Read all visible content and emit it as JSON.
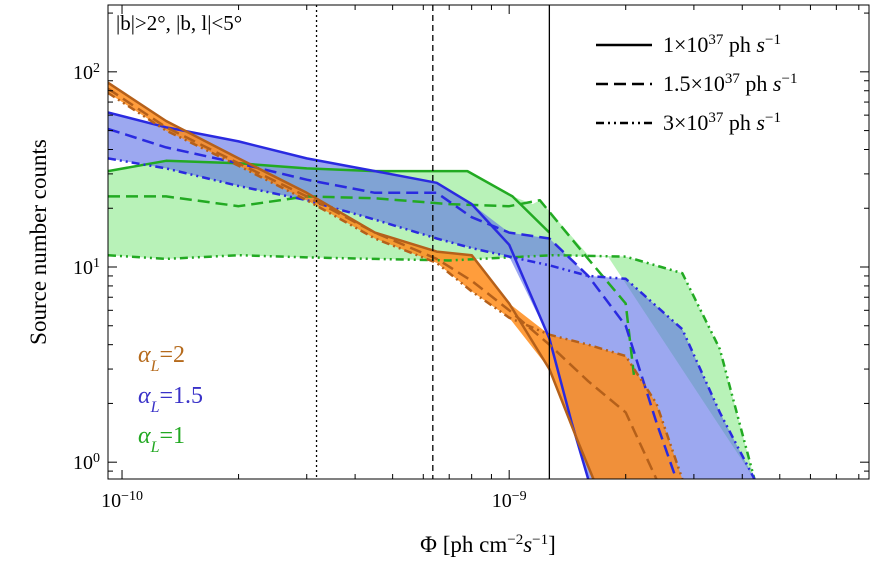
{
  "chart_data": {
    "type": "area",
    "xscale": "log",
    "yscale": "log",
    "xlim": [
      9.2e-11,
      8.5e-09
    ],
    "ylim": [
      0.82,
      220
    ],
    "xlabel_main": "Φ [ph cm",
    "xlabel_sup1": "−2",
    "xlabel_mid": "s",
    "xlabel_sup2": "−1",
    "xlabel_end": "]",
    "ylabel": "Source number counts",
    "annotation": "|b|>2°, |b, l|<5°",
    "x_ticks": [
      {
        "base": "10",
        "exp": "−10",
        "value": 1e-10
      },
      {
        "base": "10",
        "exp": "−9",
        "value": 1e-09
      }
    ],
    "y_ticks": [
      {
        "base": "10",
        "exp": "0",
        "value": 1
      },
      {
        "base": "10",
        "exp": "1",
        "value": 10
      },
      {
        "base": "10",
        "exp": "2",
        "value": 100
      }
    ],
    "vertical_lines": [
      {
        "x": 1.27e-09,
        "style": "solid"
      },
      {
        "x": 6.35e-10,
        "style": "dashed"
      },
      {
        "x": 3.18e-10,
        "style": "dotted"
      }
    ],
    "legend": [
      {
        "style": "solid",
        "coef": "1×10",
        "exp": "37",
        "unit": " ph ",
        "s": "s",
        "sexp": "−1"
      },
      {
        "style": "dashed",
        "coef": "1.5×10",
        "exp": "37",
        "unit": " ph ",
        "s": "s",
        "sexp": "−1"
      },
      {
        "style": "dashdot",
        "coef": "3×10",
        "exp": "37",
        "unit": " ph ",
        "s": "s",
        "sexp": "−1"
      }
    ],
    "alpha_labels": [
      {
        "symbol": "α",
        "sub": "L",
        "value": "=2",
        "color": "#b56a1c"
      },
      {
        "symbol": "α",
        "sub": "L",
        "value": "=1.5",
        "color": "#3a32c8"
      },
      {
        "symbol": "α",
        "sub": "L",
        "value": "=1",
        "color": "#22a822"
      }
    ],
    "groups": [
      {
        "name": "alpha_L=1",
        "line_color": "#22aa22",
        "fill_color": "#7de87d",
        "fill_opacity": 0.55,
        "series": [
          {
            "style": "solid",
            "x": [
              9.2e-11,
              1.3e-10,
              2e-10,
              3e-10,
              4.5e-10,
              7.8e-10,
              1.02e-09,
              1.27e-09
            ],
            "y": [
              31,
              35,
              34,
              32,
              31,
              31,
              23,
              15
            ]
          },
          {
            "style": "dashed",
            "x": [
              9.2e-11,
              1.3e-10,
              2e-10,
              3e-10,
              4.5e-10,
              7e-10,
              1e-09,
              1.2e-09,
              1.6e-09,
              2e-09,
              2.1e-09
            ],
            "y": [
              23,
              23,
              20.5,
              23,
              22.5,
              21,
              20.5,
              22,
              11,
              6.5,
              2.8
            ]
          },
          {
            "style": "dashdot",
            "x": [
              9.2e-11,
              1.3e-10,
              2e-10,
              3e-10,
              4.5e-10,
              7e-10,
              1e-09,
              1.3e-09,
              2e-09,
              2.8e-09,
              3.5e-09,
              4.3e-09
            ],
            "y": [
              11.5,
              11,
              11.5,
              11.2,
              11,
              10.8,
              11.2,
              11.5,
              11.3,
              9.3,
              3.8,
              0.82
            ]
          }
        ],
        "band": {
          "upper": {
            "x": [
              9.2e-11,
              1.3e-10,
              2e-10,
              3e-10,
              4.5e-10,
              7.8e-10,
              1.02e-09,
              1.15e-09,
              1.2e-09,
              1.6e-09,
              2e-09,
              2.8e-09,
              3.5e-09,
              4.3e-09
            ],
            "y": [
              31,
              35,
              34,
              32,
              31,
              31,
              23,
              21,
              22,
              11.5,
              11.3,
              9.3,
              3.8,
              0.82
            ]
          },
          "lower": {
            "x": [
              9.2e-11,
              1.3e-10,
              2e-10,
              3e-10,
              4.5e-10,
              7e-10,
              1e-09,
              1.27e-09,
              1.6e-09,
              1.8e-09,
              4.3e-09
            ],
            "y": [
              11.5,
              11,
              11.5,
              11.2,
              11,
              10.8,
              11.2,
              11.5,
              11.3,
              11.3,
              0.82
            ]
          }
        }
      },
      {
        "name": "alpha_L=1.5",
        "line_color": "#2a2ae0",
        "fill_color": "#5a6ee6",
        "fill_opacity": 0.6,
        "series": [
          {
            "style": "solid",
            "x": [
              9.2e-11,
              1.3e-10,
              2e-10,
              3e-10,
              4.5e-10,
              6.5e-10,
              8e-10,
              1e-09,
              1.27e-09,
              1.45e-09,
              1.6e-09
            ],
            "y": [
              62,
              52,
              44,
              36,
              31,
              27,
              21,
              13,
              4.3,
              1.6,
              0.82
            ]
          },
          {
            "style": "dashed",
            "x": [
              9.2e-11,
              1.3e-10,
              2e-10,
              3e-10,
              4.5e-10,
              6.5e-10,
              8e-10,
              1e-09,
              1.27e-09,
              1.6e-09,
              2e-09,
              2.4e-09,
              2.7e-09
            ],
            "y": [
              51,
              41,
              34,
              28,
              24,
              24,
              18,
              15,
              14,
              9,
              5,
              1.6,
              0.82
            ]
          },
          {
            "style": "dashdot",
            "x": [
              9.2e-11,
              1.3e-10,
              2e-10,
              3e-10,
              4.5e-10,
              6.5e-10,
              8e-10,
              1e-09,
              1.27e-09,
              1.6e-09,
              2e-09,
              2.8e-09,
              3.5e-09,
              4.3e-09
            ],
            "y": [
              36,
              32,
              26,
              22,
              17.5,
              14,
              12.5,
              11.3,
              10.2,
              9,
              8.7,
              4.8,
              1.8,
              0.82
            ]
          }
        ],
        "band": {
          "upper": {
            "x": [
              9.2e-11,
              1.3e-10,
              2e-10,
              3e-10,
              4.5e-10,
              6.5e-10,
              8e-10,
              1e-09,
              1.27e-09,
              1.6e-09,
              2e-09,
              2.8e-09,
              3.5e-09,
              4.3e-09
            ],
            "y": [
              62,
              52,
              44,
              36,
              31,
              27,
              21,
              15,
              14,
              9,
              8.7,
              4.8,
              1.8,
              0.82
            ]
          },
          "lower": {
            "x": [
              9.2e-11,
              1.3e-10,
              2e-10,
              3e-10,
              4.5e-10,
              6.5e-10,
              8e-10,
              1e-09,
              1.27e-09,
              1.45e-09,
              1.6e-09,
              4.3e-09
            ],
            "y": [
              36,
              32,
              26,
              22,
              17.5,
              14,
              12.5,
              11.3,
              4.3,
              1.6,
              0.82,
              0.82
            ]
          }
        }
      },
      {
        "name": "alpha_L=2",
        "line_color": "#b5601a",
        "fill_color": "#ff8c1a",
        "fill_opacity": 0.85,
        "series": [
          {
            "style": "solid",
            "x": [
              9.2e-11,
              1.3e-10,
              2e-10,
              3e-10,
              4.5e-10,
              6.5e-10,
              8e-10,
              1e-09,
              1.27e-09,
              1.5e-09,
              1.65e-09
            ],
            "y": [
              88,
              56,
              36,
              24,
              15,
              12,
              11.5,
              6.5,
              3,
              1.3,
              0.82
            ]
          },
          {
            "style": "dashed",
            "x": [
              9.2e-11,
              1.3e-10,
              2e-10,
              3e-10,
              4.5e-10,
              6.5e-10,
              8e-10,
              1e-09,
              1.27e-09,
              1.6e-09,
              2e-09,
              2.4e-09
            ],
            "y": [
              82,
              52,
              34,
              23,
              15,
              11,
              8.5,
              6,
              4,
              2.6,
              1.8,
              0.82
            ]
          },
          {
            "style": "dashdot",
            "x": [
              9.2e-11,
              1.3e-10,
              2e-10,
              3e-10,
              4.5e-10,
              6.5e-10,
              8e-10,
              1e-09,
              1.27e-09,
              1.6e-09,
              2e-09,
              2.4e-09,
              2.8e-09
            ],
            "y": [
              78,
              50,
              33,
              22,
              14,
              10.5,
              7.5,
              5.5,
              4.5,
              4,
              3.5,
              2,
              0.82
            ]
          }
        ],
        "band": {
          "upper": {
            "x": [
              9.2e-11,
              1.3e-10,
              2e-10,
              3e-10,
              4.5e-10,
              6.5e-10,
              8e-10,
              1e-09,
              1.27e-09,
              1.6e-09,
              2e-09,
              2.4e-09,
              2.8e-09
            ],
            "y": [
              88,
              56,
              36,
              24,
              15,
              12,
              11.5,
              6.5,
              4.5,
              4,
              3.5,
              2,
              0.82
            ]
          },
          "lower": {
            "x": [
              9.2e-11,
              1.3e-10,
              2e-10,
              3e-10,
              4.5e-10,
              6.5e-10,
              8e-10,
              1e-09,
              1.27e-09,
              1.5e-09,
              1.65e-09,
              2.8e-09
            ],
            "y": [
              78,
              50,
              33,
              22,
              14,
              10.5,
              7.5,
              5.5,
              3,
              1.3,
              0.82,
              0.82
            ]
          }
        }
      }
    ]
  }
}
